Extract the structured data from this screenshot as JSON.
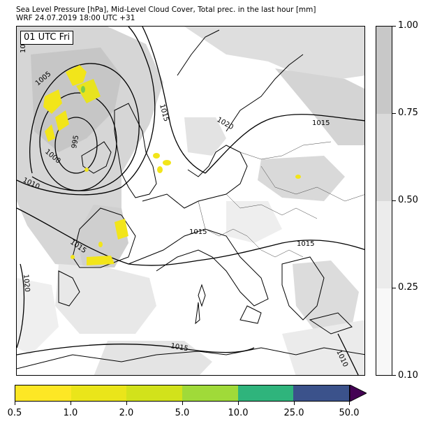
{
  "header": {
    "line1": "Sea Level Pressure [hPa], Mid-Level Cloud Cover, Total prec. in the last hour [mm]",
    "line2": "WRF 24.07.2019 18:00 UTC +31"
  },
  "map": {
    "time_badge": "01 UTC Fri",
    "isobar_labels": [
      "1005",
      "995",
      "1000",
      "1010",
      "1015",
      "1020",
      "1015",
      "1015",
      "1015",
      "1015",
      "1010",
      "1020",
      "1015",
      "10"
    ]
  },
  "cloud_colorbar": {
    "tick_labels": [
      "1.00",
      "0.75",
      "0.50",
      "0.25",
      "0.10"
    ],
    "band_colors": [
      "#c8c8c8",
      "#dadada",
      "#ececec",
      "#f8f8f8"
    ]
  },
  "precip_colorbar": {
    "tick_labels": [
      "0.5",
      "1.0",
      "2.0",
      "5.0",
      "10.0",
      "25.0",
      "50.0"
    ],
    "segment_colors": [
      "#fde725",
      "#eae51a",
      "#d2e21b",
      "#a0da39",
      "#2fb47c",
      "#3b528b",
      "#440154"
    ]
  }
}
